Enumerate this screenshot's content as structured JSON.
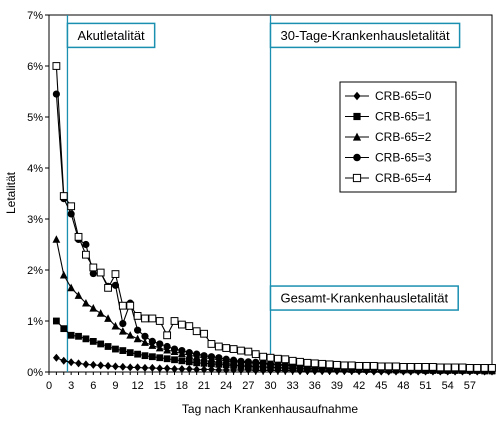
{
  "colors": {
    "background": "#ffffff",
    "plot_border": "#000000",
    "annotation": "#1a8fb0",
    "series": "#000000"
  },
  "chart_data": {
    "type": "line",
    "title": "",
    "xlabel": "Tag nach Krankenhausaufnahme",
    "ylabel": "Letalität",
    "xlim": [
      0,
      60
    ],
    "ylim": [
      0,
      7
    ],
    "x_ticks": [
      0,
      3,
      6,
      9,
      12,
      15,
      18,
      21,
      24,
      27,
      30,
      33,
      36,
      39,
      42,
      45,
      48,
      51,
      54,
      57
    ],
    "y_ticks": [
      {
        "value": 0,
        "label": "0%"
      },
      {
        "value": 1,
        "label": "1%"
      },
      {
        "value": 2,
        "label": "2%"
      },
      {
        "value": 3,
        "label": "3%"
      },
      {
        "value": 4,
        "label": "4%"
      },
      {
        "value": 5,
        "label": "5%"
      },
      {
        "value": 6,
        "label": "6%"
      },
      {
        "value": 7,
        "label": "7%"
      }
    ],
    "grid": false,
    "legend_position": "top-right",
    "vertical_lines": [
      2.5,
      30
    ],
    "annotations": [
      {
        "text": "Akutletalität",
        "x": 2.5,
        "y": 6.6
      },
      {
        "text": "30-Tage-Krankenhausletalität",
        "x": 30,
        "y": 6.6
      },
      {
        "text": "Gesamt-Krankenhausletalität",
        "x": 30,
        "y": 1.45
      }
    ],
    "series": [
      {
        "name": "CRB-65=0",
        "marker": "diamond",
        "x": [
          1,
          2,
          3,
          4,
          5,
          6,
          7,
          8,
          9,
          10,
          11,
          12,
          13,
          14,
          15,
          16,
          17,
          18,
          19,
          20,
          21,
          22,
          23,
          24,
          25,
          26,
          27,
          28,
          29,
          30,
          31,
          32,
          33,
          34,
          35,
          36,
          37,
          38,
          39,
          40,
          41,
          42,
          43,
          44,
          45,
          46,
          47,
          48,
          49,
          50,
          51,
          52,
          53,
          54,
          55,
          56,
          57,
          58,
          59,
          60
        ],
        "values": [
          0.28,
          0.22,
          0.19,
          0.17,
          0.15,
          0.14,
          0.13,
          0.12,
          0.11,
          0.1,
          0.09,
          0.09,
          0.08,
          0.08,
          0.07,
          0.07,
          0.06,
          0.06,
          0.06,
          0.05,
          0.05,
          0.05,
          0.04,
          0.04,
          0.04,
          0.04,
          0.04,
          0.03,
          0.03,
          0.03,
          0.03,
          0.03,
          0.03,
          0.02,
          0.02,
          0.02,
          0.02,
          0.02,
          0.02,
          0.02,
          0.02,
          0.02,
          0.02,
          0.01,
          0.01,
          0.01,
          0.01,
          0.01,
          0.01,
          0.01,
          0.01,
          0.01,
          0.01,
          0.01,
          0.01,
          0.01,
          0.01,
          0.01,
          0.01,
          0.01
        ]
      },
      {
        "name": "CRB-65=1",
        "marker": "square",
        "x": [
          1,
          2,
          3,
          4,
          5,
          6,
          7,
          8,
          9,
          10,
          11,
          12,
          13,
          14,
          15,
          16,
          17,
          18,
          19,
          20,
          21,
          22,
          23,
          24,
          25,
          26,
          27,
          28,
          29,
          30,
          31,
          32,
          33,
          34,
          35,
          36,
          37,
          38,
          39,
          40,
          41,
          42,
          43,
          44,
          45,
          46,
          47,
          48,
          49,
          50,
          51,
          52,
          53,
          54,
          55,
          56,
          57,
          58,
          59,
          60
        ],
        "values": [
          1.0,
          0.85,
          0.72,
          0.7,
          0.65,
          0.6,
          0.55,
          0.5,
          0.45,
          0.42,
          0.38,
          0.35,
          0.32,
          0.3,
          0.28,
          0.26,
          0.24,
          0.22,
          0.2,
          0.18,
          0.17,
          0.16,
          0.15,
          0.14,
          0.13,
          0.12,
          0.11,
          0.1,
          0.1,
          0.09,
          0.09,
          0.08,
          0.08,
          0.08,
          0.07,
          0.07,
          0.07,
          0.06,
          0.06,
          0.06,
          0.05,
          0.05,
          0.05,
          0.05,
          0.05,
          0.04,
          0.04,
          0.04,
          0.04,
          0.04,
          0.03,
          0.03,
          0.03,
          0.03,
          0.03,
          0.03,
          0.03,
          0.03,
          0.02,
          0.02
        ]
      },
      {
        "name": "CRB-65=2",
        "marker": "triangle",
        "x": [
          1,
          2,
          3,
          4,
          5,
          6,
          7,
          8,
          9,
          10,
          11,
          12,
          13,
          14,
          15,
          16,
          17,
          18,
          19,
          20,
          21,
          22,
          23,
          24,
          25,
          26,
          27,
          28,
          29,
          30,
          31,
          32,
          33,
          34,
          35,
          36,
          37,
          38,
          39,
          40,
          41,
          42,
          43,
          44,
          45,
          46,
          47,
          48,
          49,
          50,
          51,
          52,
          53,
          54,
          55,
          56,
          57,
          58,
          59,
          60
        ],
        "values": [
          2.6,
          1.9,
          1.65,
          1.5,
          1.35,
          1.25,
          1.15,
          1.05,
          0.9,
          0.8,
          0.72,
          0.65,
          0.58,
          0.52,
          0.47,
          0.43,
          0.4,
          0.36,
          0.33,
          0.3,
          0.28,
          0.26,
          0.24,
          0.22,
          0.2,
          0.19,
          0.18,
          0.17,
          0.16,
          0.15,
          0.14,
          0.13,
          0.12,
          0.12,
          0.11,
          0.1,
          0.1,
          0.09,
          0.09,
          0.08,
          0.08,
          0.08,
          0.07,
          0.07,
          0.07,
          0.06,
          0.06,
          0.06,
          0.06,
          0.05,
          0.05,
          0.05,
          0.05,
          0.05,
          0.04,
          0.04,
          0.04,
          0.04,
          0.04,
          0.04
        ]
      },
      {
        "name": "CRB-65=3",
        "marker": "circle",
        "x": [
          1,
          2,
          3,
          4,
          5,
          6,
          7,
          8,
          9,
          10,
          11,
          12,
          13,
          14,
          15,
          16,
          17,
          18,
          19,
          20,
          21,
          22,
          23,
          24,
          25,
          26,
          27,
          28,
          29,
          30,
          31,
          32,
          33,
          34,
          35,
          36,
          37,
          38,
          39,
          40,
          41,
          42,
          43,
          44,
          45,
          46,
          47,
          48,
          49,
          50,
          51,
          52,
          53,
          54,
          55,
          56,
          57,
          58,
          59,
          60
        ],
        "values": [
          5.45,
          3.4,
          3.1,
          2.6,
          2.5,
          1.93,
          1.95,
          1.68,
          1.7,
          0.95,
          1.35,
          0.82,
          0.7,
          0.6,
          0.55,
          0.5,
          0.45,
          0.42,
          0.38,
          0.35,
          0.32,
          0.3,
          0.28,
          0.25,
          0.23,
          0.21,
          0.2,
          0.19,
          0.18,
          0.16,
          0.15,
          0.14,
          0.13,
          0.12,
          0.12,
          0.11,
          0.1,
          0.1,
          0.09,
          0.09,
          0.08,
          0.08,
          0.08,
          0.07,
          0.07,
          0.07,
          0.06,
          0.06,
          0.06,
          0.05,
          0.05,
          0.05,
          0.05,
          0.05,
          0.04,
          0.04,
          0.04,
          0.04,
          0.04,
          0.04
        ]
      },
      {
        "name": "CRB-65=4",
        "marker": "open-square",
        "x": [
          1,
          2,
          3,
          4,
          5,
          6,
          7,
          8,
          9,
          10,
          11,
          12,
          13,
          14,
          15,
          16,
          17,
          18,
          19,
          20,
          21,
          22,
          23,
          24,
          25,
          26,
          27,
          28,
          29,
          30,
          31,
          32,
          33,
          34,
          35,
          36,
          37,
          38,
          39,
          40,
          41,
          42,
          43,
          44,
          45,
          46,
          47,
          48,
          49,
          50,
          51,
          52,
          53,
          54,
          55,
          56,
          57,
          58,
          59,
          60
        ],
        "values": [
          6.0,
          3.45,
          3.25,
          2.65,
          2.3,
          2.05,
          1.95,
          1.65,
          1.92,
          1.3,
          1.3,
          1.1,
          1.05,
          1.05,
          1.0,
          0.72,
          1.0,
          0.93,
          0.9,
          0.8,
          0.75,
          0.55,
          0.5,
          0.47,
          0.45,
          0.42,
          0.4,
          0.35,
          0.3,
          0.28,
          0.26,
          0.25,
          0.22,
          0.2,
          0.18,
          0.17,
          0.16,
          0.15,
          0.14,
          0.13,
          0.13,
          0.12,
          0.12,
          0.12,
          0.11,
          0.11,
          0.11,
          0.1,
          0.1,
          0.1,
          0.1,
          0.1,
          0.09,
          0.09,
          0.09,
          0.09,
          0.08,
          0.08,
          0.08,
          0.08
        ]
      }
    ]
  }
}
